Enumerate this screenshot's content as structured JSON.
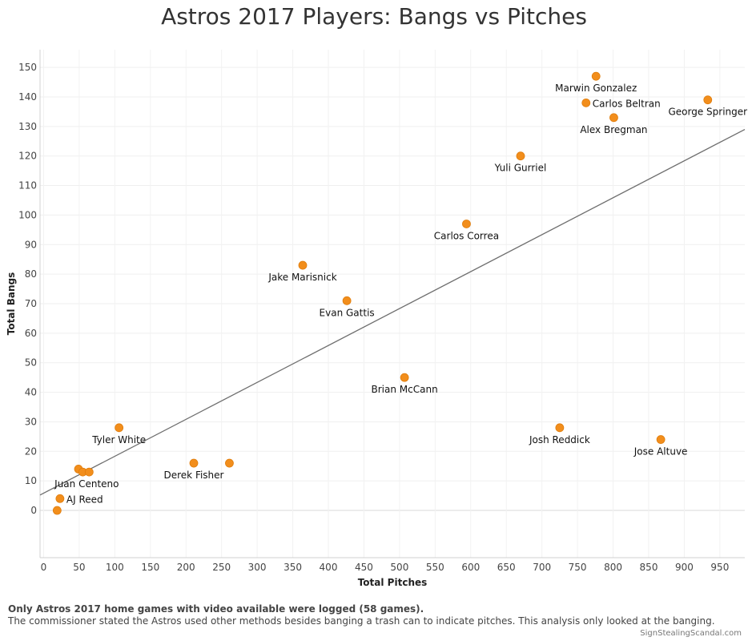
{
  "chart_data": {
    "type": "scatter",
    "title": "Astros 2017 Players: Bangs vs Pitches",
    "xlabel": "Total Pitches",
    "ylabel": "Total Bangs",
    "xlim": [
      -5,
      985
    ],
    "ylim": [
      -16,
      156
    ],
    "xticks": [
      0,
      50,
      100,
      150,
      200,
      250,
      300,
      350,
      400,
      450,
      500,
      550,
      600,
      650,
      700,
      750,
      800,
      850,
      900,
      950
    ],
    "yticks": [
      0,
      10,
      20,
      30,
      40,
      50,
      60,
      70,
      80,
      90,
      100,
      110,
      120,
      130,
      140,
      150
    ],
    "trend_line": {
      "x0": -5,
      "y0": 5.2,
      "x1": 985,
      "y1": 129
    },
    "point_color": "#f28e1c",
    "points": [
      {
        "name": "Marwin Gonzalez",
        "x": 776,
        "y": 147
      },
      {
        "name": "Carlos Beltran",
        "x": 762,
        "y": 138
      },
      {
        "name": "George Springer",
        "x": 933,
        "y": 139
      },
      {
        "name": "Alex Bregman",
        "x": 801,
        "y": 133
      },
      {
        "name": "Yuli Gurriel",
        "x": 670,
        "y": 120
      },
      {
        "name": "Carlos Correa",
        "x": 594,
        "y": 97
      },
      {
        "name": "Jake Marisnick",
        "x": 364,
        "y": 83
      },
      {
        "name": "Evan Gattis",
        "x": 426,
        "y": 71
      },
      {
        "name": "Brian McCann",
        "x": 507,
        "y": 45
      },
      {
        "name": "Josh Reddick",
        "x": 725,
        "y": 28
      },
      {
        "name": "Jose Altuve",
        "x": 867,
        "y": 24
      },
      {
        "name": "Tyler White",
        "x": 106,
        "y": 28
      },
      {
        "name": "Derek Fisher",
        "x": 211,
        "y": 16
      },
      {
        "name": "",
        "x": 261,
        "y": 16
      },
      {
        "name": "",
        "x": 49,
        "y": 14
      },
      {
        "name": "",
        "x": 55,
        "y": 13
      },
      {
        "name": "Juan Centeno",
        "x": 64,
        "y": 13
      },
      {
        "name": "AJ Reed",
        "x": 23,
        "y": 4
      },
      {
        "name": "",
        "x": 19,
        "y": 0
      }
    ]
  },
  "footnote": {
    "line1": "Only Astros 2017 home games with video available were logged (58 games).",
    "line2": "The commissioner stated the Astros used other methods besides banging a trash can to indicate pitches. This analysis only looked at the banging.",
    "credit": "SignStealingScandal.com"
  }
}
